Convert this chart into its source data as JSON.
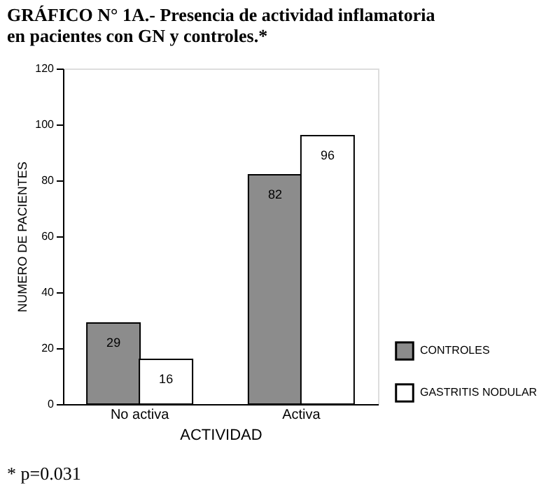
{
  "chart_data": {
    "type": "bar",
    "title": "GRÁFICO N° 1A.- Presencia de actividad inflamatoria en pacientes con GN y controles.*",
    "categories": [
      "No activa",
      "Activa"
    ],
    "series": [
      {
        "name": "CONTROLES",
        "color": "#8c8c8c",
        "values": [
          29,
          82
        ]
      },
      {
        "name": "GASTRITIS NODULAR",
        "color": "#ffffff",
        "values": [
          16,
          96
        ]
      }
    ],
    "xlabel": "ACTIVIDAD",
    "ylabel": "NUMERO DE PACIENTES",
    "ylim": [
      0,
      120
    ],
    "yticks": [
      0,
      20,
      40,
      60,
      80,
      100,
      120
    ],
    "grid": false,
    "legend": "bottom right",
    "data_labels": true,
    "annotations": [
      "* p=0.031"
    ]
  }
}
